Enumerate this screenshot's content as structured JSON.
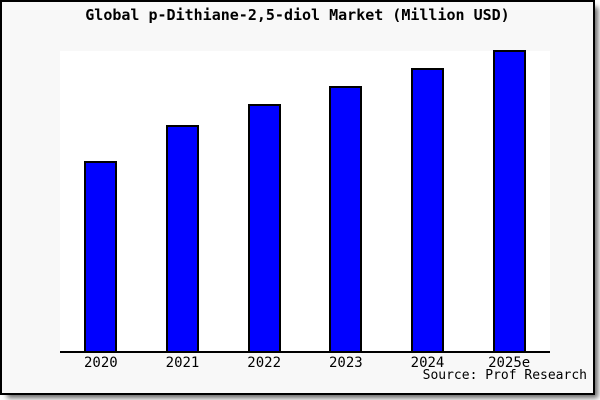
{
  "title": "Global p-Dithiane-2,5-diol Market (Million USD)",
  "source_credit": "Source: Prof Research",
  "colors": {
    "bar_fill": "#0000ff",
    "bar_edge": "#000000",
    "figure_background": "#f8f8f8",
    "plot_background": "#ffffff",
    "frame_border": "#000000",
    "axis_line": "#000000",
    "text": "#000000"
  },
  "chart_data": {
    "type": "bar",
    "title": "Global p-Dithiane-2,5-diol Market (Million USD)",
    "categories": [
      "2020",
      "2021",
      "2022",
      "2023",
      "2024",
      "2025e"
    ],
    "values": [
      63,
      75,
      82,
      88,
      94,
      100
    ],
    "values_note": "No value axis or data labels shown in the image; values estimated from relative bar heights normalized to 2025e = 100",
    "xlabel": "",
    "ylabel": "",
    "ylim": [
      0,
      100
    ],
    "grid": false,
    "legend": false,
    "source": "Source: Prof Research",
    "bar_color": "#0000ff"
  }
}
